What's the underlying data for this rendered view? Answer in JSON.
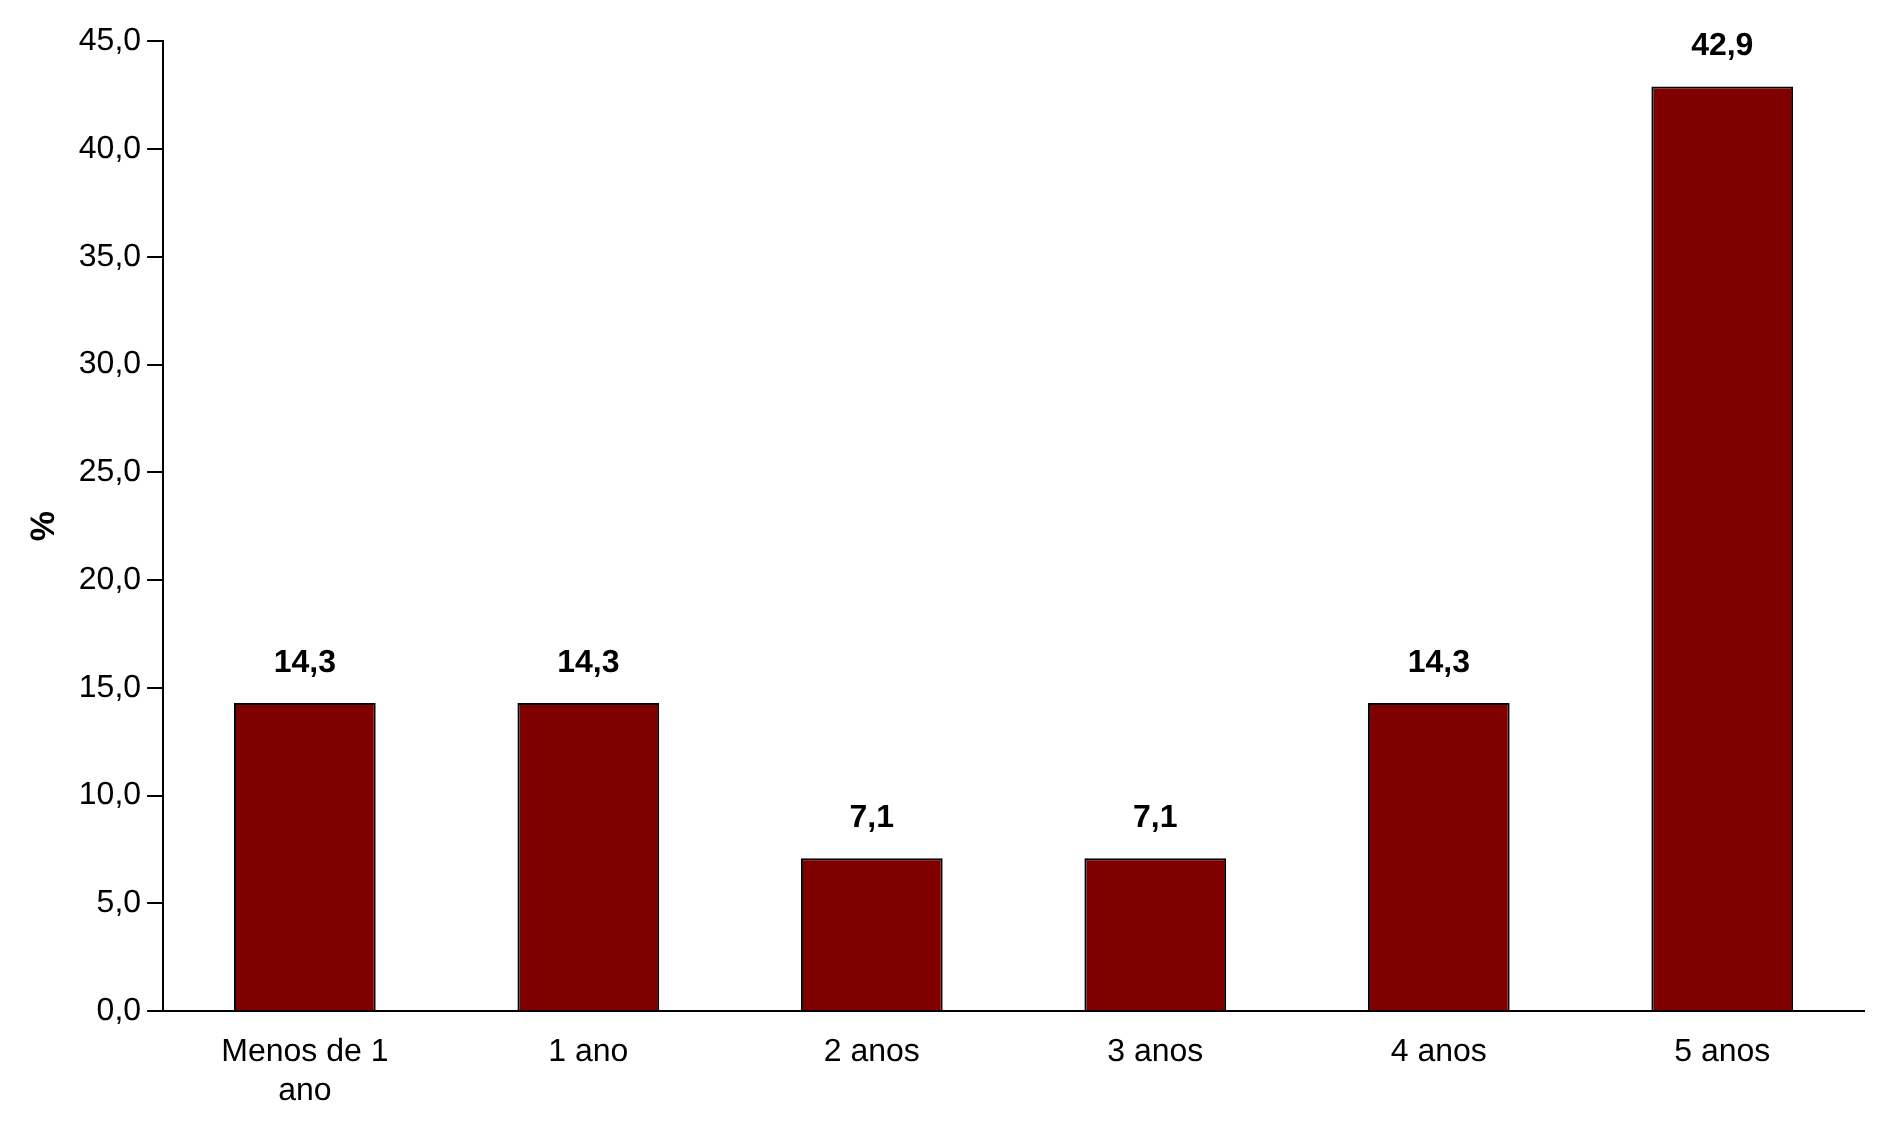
{
  "chart_data": {
    "type": "bar",
    "ylabel": "%",
    "categories": [
      "Menos de 1 ano",
      "1 ano",
      "2 anos",
      "3 anos",
      "4 anos",
      "5 anos"
    ],
    "values": [
      14.3,
      14.3,
      7.1,
      7.1,
      14.3,
      42.9
    ],
    "value_labels": [
      "14,3",
      "14,3",
      "7,1",
      "7,1",
      "14,3",
      "42,9"
    ],
    "color": "#800000",
    "ylim": [
      0,
      45
    ],
    "yticks": [
      {
        "value": 0,
        "label": "0,0"
      },
      {
        "value": 5,
        "label": "5,0"
      },
      {
        "value": 10,
        "label": "10,0"
      },
      {
        "value": 15,
        "label": "15,0"
      },
      {
        "value": 20,
        "label": "20,0"
      },
      {
        "value": 25,
        "label": "25,0"
      },
      {
        "value": 30,
        "label": "30,0"
      },
      {
        "value": 35,
        "label": "35,0"
      },
      {
        "value": 40,
        "label": "40,0"
      },
      {
        "value": 45,
        "label": "45,0"
      }
    ],
    "grid": false,
    "legend": false
  }
}
